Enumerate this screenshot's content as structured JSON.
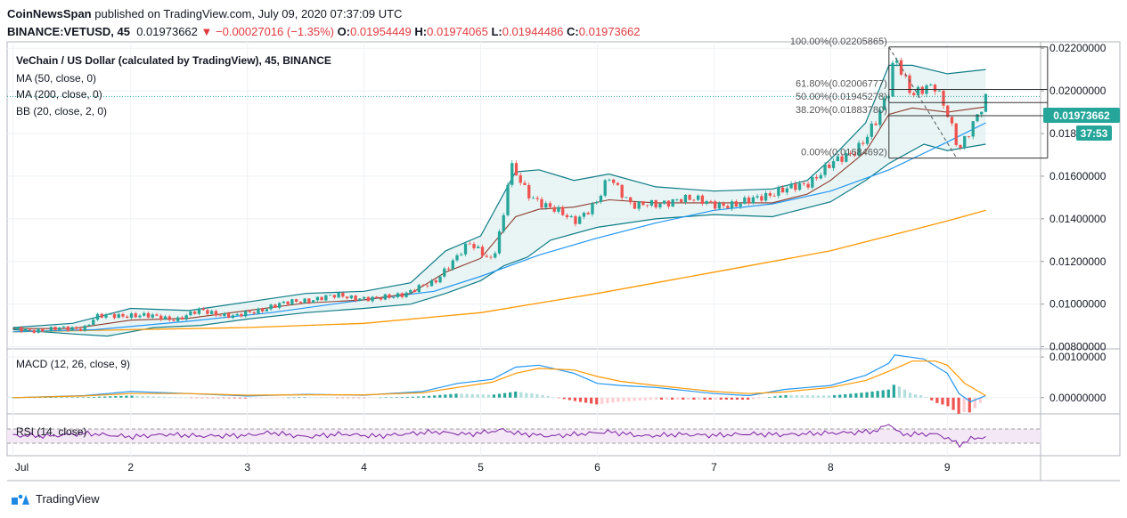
{
  "header": {
    "line1_author": "CoinNewsSpan",
    "line1_rest": "published on TradingView.com, July 09, 2020 07:37:09 UTC",
    "symbol": "BINANCE:VETUSD, 45",
    "last": "0.01973662",
    "change": "−0.00027016 (−1.35%)",
    "o": "0.01954449",
    "h": "0.01974065",
    "l": "0.01944486",
    "c": "0.01973662",
    "o_label": "O:",
    "h_label": "H:",
    "l_label": "L:",
    "c_label": "C:"
  },
  "legend": {
    "title": "VeChain / US Dollar (calculated by TradingView), 45, BINANCE",
    "ma50": "MA (50, close, 0)",
    "ma200": "MA (200, close, 0)",
    "bb": "BB (20, close, 2, 0)",
    "macd": "MACD (12, 26, close, 9)",
    "rsi": "RSI (14, close)"
  },
  "price_badge": "0.01973662",
  "countdown_badge": "37:53",
  "footer": {
    "brand": "TradingView",
    "logo_icon": "tradingview-logo-icon"
  },
  "colors": {
    "up": "#26a69a",
    "down": "#ef5350",
    "ma50": "#2196f3",
    "ma200": "#ff9800",
    "bb": "#0e7c86",
    "rsi": "#7b1fa2",
    "macd": "#2196f3",
    "signal": "#ff9800"
  },
  "chart_data": {
    "type": "line",
    "main": {
      "y_ticks": [
        "0.02200000",
        "0.02000000",
        "0.01800000",
        "0.01600000",
        "0.01400000",
        "0.01200000",
        "0.01000000",
        "0.00800000"
      ],
      "ylim": [
        0.0079,
        0.0223
      ],
      "x_ticks": [
        "Jul",
        "2",
        "3",
        "4",
        "5",
        "6",
        "7",
        "8",
        "9"
      ],
      "x_days": [
        0.99,
        2,
        3,
        4,
        5,
        6,
        7,
        8,
        9
      ],
      "xlim": [
        0.94,
        9.8
      ],
      "price_path": [
        [
          0.99,
          0.0088
        ],
        [
          1.3,
          0.0088
        ],
        [
          1.6,
          0.0089
        ],
        [
          1.7,
          0.0094
        ],
        [
          2.0,
          0.0095
        ],
        [
          2.4,
          0.0093
        ],
        [
          2.6,
          0.0097
        ],
        [
          2.9,
          0.0094
        ],
        [
          3.2,
          0.0099
        ],
        [
          3.5,
          0.0102
        ],
        [
          3.8,
          0.0104
        ],
        [
          4.1,
          0.0102
        ],
        [
          4.4,
          0.0106
        ],
        [
          4.6,
          0.011
        ],
        [
          4.7,
          0.0117
        ],
        [
          4.9,
          0.0128
        ],
        [
          5.1,
          0.0121
        ],
        [
          5.2,
          0.0142
        ],
        [
          5.25,
          0.0165
        ],
        [
          5.4,
          0.0152
        ],
        [
          5.6,
          0.0145
        ],
        [
          5.8,
          0.0139
        ],
        [
          6.0,
          0.0148
        ],
        [
          6.1,
          0.0159
        ],
        [
          6.3,
          0.0147
        ],
        [
          6.5,
          0.0146
        ],
        [
          6.7,
          0.015
        ],
        [
          6.9,
          0.0148
        ],
        [
          7.2,
          0.0146
        ],
        [
          7.4,
          0.0151
        ],
        [
          7.6,
          0.0153
        ],
        [
          7.8,
          0.0157
        ],
        [
          8.0,
          0.0165
        ],
        [
          8.2,
          0.0172
        ],
        [
          8.3,
          0.0178
        ],
        [
          8.4,
          0.0186
        ],
        [
          8.5,
          0.02
        ],
        [
          8.55,
          0.0218
        ],
        [
          8.7,
          0.0198
        ],
        [
          8.9,
          0.0202
        ],
        [
          9.0,
          0.0191
        ],
        [
          9.1,
          0.0172
        ],
        [
          9.2,
          0.0181
        ],
        [
          9.3,
          0.0193
        ],
        [
          9.33,
          0.0197
        ]
      ],
      "ma50": [
        [
          0.99,
          0.0087
        ],
        [
          1.7,
          0.0088
        ],
        [
          2.5,
          0.0092
        ],
        [
          3.2,
          0.0096
        ],
        [
          4.0,
          0.0102
        ],
        [
          4.6,
          0.0106
        ],
        [
          5.0,
          0.0113
        ],
        [
          5.5,
          0.0123
        ],
        [
          6.0,
          0.0131
        ],
        [
          6.5,
          0.0138
        ],
        [
          7.0,
          0.0144
        ],
        [
          7.5,
          0.0147
        ],
        [
          8.0,
          0.0153
        ],
        [
          8.5,
          0.0163
        ],
        [
          9.0,
          0.0176
        ],
        [
          9.33,
          0.0185
        ]
      ],
      "ma200": [
        [
          0.99,
          0.0087
        ],
        [
          2.0,
          0.0088
        ],
        [
          3.0,
          0.0089
        ],
        [
          4.0,
          0.0091
        ],
        [
          5.0,
          0.0096
        ],
        [
          6.0,
          0.0105
        ],
        [
          7.0,
          0.0115
        ],
        [
          8.0,
          0.0125
        ],
        [
          8.5,
          0.0132
        ],
        [
          9.0,
          0.0139
        ],
        [
          9.33,
          0.0144
        ]
      ],
      "bb_upper": [
        [
          0.99,
          0.0089
        ],
        [
          1.5,
          0.0091
        ],
        [
          2.0,
          0.0098
        ],
        [
          2.5,
          0.0097
        ],
        [
          3.0,
          0.0101
        ],
        [
          3.5,
          0.0105
        ],
        [
          4.0,
          0.0106
        ],
        [
          4.4,
          0.011
        ],
        [
          4.7,
          0.0125
        ],
        [
          5.0,
          0.0132
        ],
        [
          5.3,
          0.0162
        ],
        [
          5.5,
          0.0163
        ],
        [
          5.8,
          0.0158
        ],
        [
          6.1,
          0.0161
        ],
        [
          6.5,
          0.0155
        ],
        [
          7.0,
          0.0153
        ],
        [
          7.5,
          0.0154
        ],
        [
          7.8,
          0.0158
        ],
        [
          8.0,
          0.0168
        ],
        [
          8.3,
          0.0185
        ],
        [
          8.5,
          0.0212
        ],
        [
          8.7,
          0.0212
        ],
        [
          9.0,
          0.0208
        ],
        [
          9.33,
          0.021
        ]
      ],
      "bb_lower": [
        [
          0.99,
          0.0088
        ],
        [
          1.5,
          0.0086
        ],
        [
          1.8,
          0.0085
        ],
        [
          2.2,
          0.0089
        ],
        [
          2.6,
          0.009
        ],
        [
          3.0,
          0.0093
        ],
        [
          3.5,
          0.0096
        ],
        [
          4.0,
          0.0098
        ],
        [
          4.4,
          0.01
        ],
        [
          4.7,
          0.0105
        ],
        [
          5.0,
          0.0111
        ],
        [
          5.2,
          0.0118
        ],
        [
          5.4,
          0.0122
        ],
        [
          5.6,
          0.013
        ],
        [
          6.0,
          0.0136
        ],
        [
          6.5,
          0.014
        ],
        [
          7.0,
          0.0142
        ],
        [
          7.5,
          0.0141
        ],
        [
          8.0,
          0.0148
        ],
        [
          8.3,
          0.0158
        ],
        [
          8.5,
          0.0166
        ],
        [
          8.8,
          0.0175
        ],
        [
          9.0,
          0.0172
        ],
        [
          9.33,
          0.0175
        ]
      ],
      "fibonacci": [
        {
          "label": "100.00%(0.02205865)",
          "value": 0.02205865
        },
        {
          "label": "61.80%(0.02006777)",
          "value": 0.02006777
        },
        {
          "label": "50.00%(0.01945278)",
          "value": 0.01945278
        },
        {
          "label": "38.20%(0.01883780)",
          "value": 0.0188378
        },
        {
          "label": "0.00%(0.01684692)",
          "value": 0.01684692
        }
      ],
      "fib_x_range": [
        8.5,
        9.86
      ]
    },
    "macd": {
      "y_ticks": [
        "0.00100000",
        "0.00000000"
      ],
      "ylim": [
        -0.0004,
        0.0012
      ],
      "macd_line": [
        [
          0.99,
          0.0
        ],
        [
          1.6,
          5e-05
        ],
        [
          2.0,
          0.00015
        ],
        [
          2.5,
          0.0001
        ],
        [
          3.0,
          4e-05
        ],
        [
          3.5,
          8e-05
        ],
        [
          4.0,
          6e-05
        ],
        [
          4.5,
          0.00015
        ],
        [
          4.8,
          0.00035
        ],
        [
          5.1,
          0.00045
        ],
        [
          5.3,
          0.00075
        ],
        [
          5.5,
          0.0008
        ],
        [
          5.8,
          0.0006
        ],
        [
          6.0,
          0.00035
        ],
        [
          6.2,
          0.0003
        ],
        [
          6.5,
          0.00025
        ],
        [
          7.0,
          0.0001
        ],
        [
          7.3,
          5e-05
        ],
        [
          7.6,
          0.0002
        ],
        [
          8.0,
          0.0003
        ],
        [
          8.3,
          0.00055
        ],
        [
          8.5,
          0.00085
        ],
        [
          8.55,
          0.00105
        ],
        [
          8.8,
          0.00095
        ],
        [
          9.0,
          0.0006
        ],
        [
          9.1,
          0.0001
        ],
        [
          9.2,
          -0.0001
        ],
        [
          9.33,
          5e-05
        ]
      ],
      "signal_line": [
        [
          0.99,
          0.0
        ],
        [
          1.6,
          4e-05
        ],
        [
          2.0,
          0.0001
        ],
        [
          2.5,
          0.0001
        ],
        [
          3.0,
          6e-05
        ],
        [
          3.5,
          7e-05
        ],
        [
          4.0,
          7e-05
        ],
        [
          4.5,
          0.00012
        ],
        [
          4.8,
          0.00025
        ],
        [
          5.1,
          0.00038
        ],
        [
          5.3,
          0.0006
        ],
        [
          5.5,
          0.00072
        ],
        [
          5.8,
          0.00068
        ],
        [
          6.0,
          0.00052
        ],
        [
          6.2,
          0.0004
        ],
        [
          6.5,
          0.0003
        ],
        [
          7.0,
          0.00015
        ],
        [
          7.3,
          0.0001
        ],
        [
          7.6,
          0.00014
        ],
        [
          8.0,
          0.00025
        ],
        [
          8.3,
          0.00042
        ],
        [
          8.5,
          0.00065
        ],
        [
          8.7,
          0.0009
        ],
        [
          8.9,
          0.0009
        ],
        [
          9.0,
          0.0008
        ],
        [
          9.15,
          0.00035
        ],
        [
          9.33,
          5e-05
        ]
      ]
    },
    "rsi": {
      "levels": [
        70,
        30
      ],
      "ylim": [
        0,
        100
      ],
      "values": [
        [
          0.99,
          52
        ],
        [
          1.3,
          50
        ],
        [
          1.6,
          58
        ],
        [
          2.0,
          48
        ],
        [
          2.3,
          55
        ],
        [
          2.6,
          50
        ],
        [
          3.0,
          52
        ],
        [
          3.2,
          60
        ],
        [
          3.5,
          48
        ],
        [
          3.8,
          56
        ],
        [
          4.1,
          50
        ],
        [
          4.4,
          57
        ],
        [
          4.6,
          62
        ],
        [
          4.9,
          55
        ],
        [
          5.2,
          68
        ],
        [
          5.3,
          58
        ],
        [
          5.6,
          50
        ],
        [
          5.9,
          57
        ],
        [
          6.1,
          62
        ],
        [
          6.4,
          50
        ],
        [
          6.7,
          55
        ],
        [
          7.0,
          52
        ],
        [
          7.3,
          56
        ],
        [
          7.6,
          54
        ],
        [
          7.9,
          58
        ],
        [
          8.2,
          60
        ],
        [
          8.4,
          65
        ],
        [
          8.5,
          86
        ],
        [
          8.6,
          55
        ],
        [
          8.9,
          56
        ],
        [
          9.0,
          45
        ],
        [
          9.1,
          25
        ],
        [
          9.2,
          42
        ],
        [
          9.33,
          48
        ]
      ]
    }
  }
}
